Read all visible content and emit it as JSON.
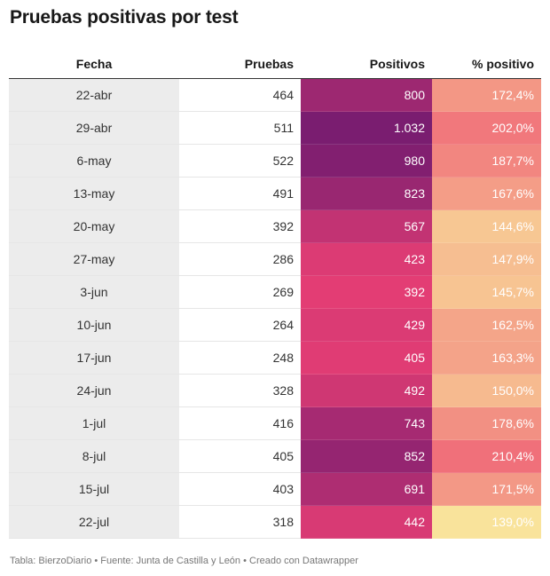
{
  "title": "Pruebas positivas por test",
  "footer": "Tabla: BierzoDiario • Fuente: Junta de Castilla y León • Creado con Datawrapper",
  "chart_data": {
    "type": "table",
    "columns": [
      "Fecha",
      "Pruebas",
      "Positivos",
      "% positivo"
    ],
    "rows": [
      {
        "fecha": "22-abr",
        "pruebas": "464",
        "positivos": "800",
        "pct": "172,4%",
        "positivos_value": 800,
        "pct_value": 172.4
      },
      {
        "fecha": "29-abr",
        "pruebas": "511",
        "positivos": "1.032",
        "pct": "202,0%",
        "positivos_value": 1032,
        "pct_value": 202.0
      },
      {
        "fecha": "6-may",
        "pruebas": "522",
        "positivos": "980",
        "pct": "187,7%",
        "positivos_value": 980,
        "pct_value": 187.7
      },
      {
        "fecha": "13-may",
        "pruebas": "491",
        "positivos": "823",
        "pct": "167,6%",
        "positivos_value": 823,
        "pct_value": 167.6
      },
      {
        "fecha": "20-may",
        "pruebas": "392",
        "positivos": "567",
        "pct": "144,6%",
        "positivos_value": 567,
        "pct_value": 144.6
      },
      {
        "fecha": "27-may",
        "pruebas": "286",
        "positivos": "423",
        "pct": "147,9%",
        "positivos_value": 423,
        "pct_value": 147.9
      },
      {
        "fecha": "3-jun",
        "pruebas": "269",
        "positivos": "392",
        "pct": "145,7%",
        "positivos_value": 392,
        "pct_value": 145.7
      },
      {
        "fecha": "10-jun",
        "pruebas": "264",
        "positivos": "429",
        "pct": "162,5%",
        "positivos_value": 429,
        "pct_value": 162.5
      },
      {
        "fecha": "17-jun",
        "pruebas": "248",
        "positivos": "405",
        "pct": "163,3%",
        "positivos_value": 405,
        "pct_value": 163.3
      },
      {
        "fecha": "24-jun",
        "pruebas": "328",
        "positivos": "492",
        "pct": "150,0%",
        "positivos_value": 492,
        "pct_value": 150.0
      },
      {
        "fecha": "1-jul",
        "pruebas": "416",
        "positivos": "743",
        "pct": "178,6%",
        "positivos_value": 743,
        "pct_value": 178.6
      },
      {
        "fecha": "8-jul",
        "pruebas": "405",
        "positivos": "852",
        "pct": "210,4%",
        "positivos_value": 852,
        "pct_value": 210.4
      },
      {
        "fecha": "15-jul",
        "pruebas": "403",
        "positivos": "691",
        "pct": "171,5%",
        "positivos_value": 691,
        "pct_value": 171.5
      },
      {
        "fecha": "22-jul",
        "pruebas": "318",
        "positivos": "442",
        "pct": "139,0%",
        "positivos_value": 442,
        "pct_value": 139.0
      }
    ],
    "heatmap_colors": {
      "positivos": {
        "low": "#e33d74",
        "high": "#7a1d70"
      },
      "pct": {
        "low": "#f9e39b",
        "high": "#f0707a"
      }
    },
    "shaded_column_color": "#ececec"
  }
}
